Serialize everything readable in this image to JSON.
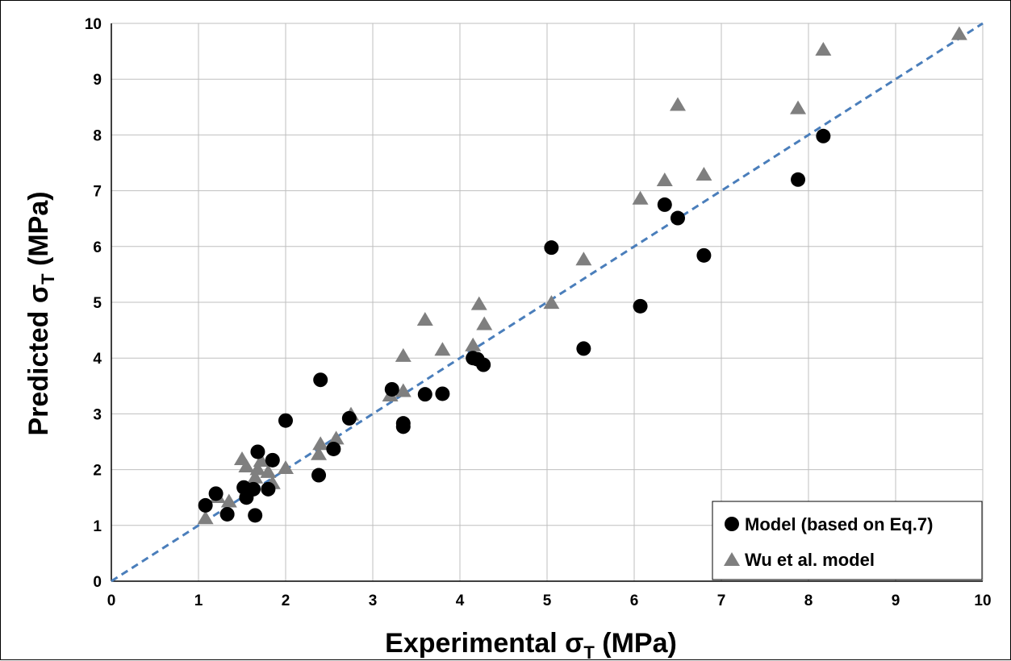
{
  "chart_data": {
    "type": "scatter",
    "xlabel_main": "Experimental σ",
    "xlabel_sub": "T",
    "xlabel_unit": " (MPa)",
    "ylabel_main": "Predicted σ",
    "ylabel_sub": "T",
    "ylabel_unit": " (MPa)",
    "xlim": [
      0,
      10
    ],
    "ylim": [
      0,
      10
    ],
    "xticks": [
      0,
      1,
      2,
      3,
      4,
      5,
      6,
      7,
      8,
      9,
      10
    ],
    "yticks": [
      0,
      1,
      2,
      3,
      4,
      5,
      6,
      7,
      8,
      9,
      10
    ],
    "grid": true,
    "legend_position": "bottom-right",
    "reference_line": {
      "style": "dashed",
      "color": "#4a7ebb",
      "from": [
        0,
        0
      ],
      "to": [
        10,
        10
      ]
    },
    "series": [
      {
        "name": "Model (based on Eq.7)",
        "marker": "circle",
        "color": "#000000",
        "x": [
          1.08,
          1.2,
          1.33,
          1.52,
          1.55,
          1.63,
          1.65,
          1.68,
          1.8,
          1.85,
          2.0,
          2.38,
          2.4,
          2.55,
          2.73,
          3.22,
          3.35,
          3.35,
          3.6,
          3.8,
          4.15,
          4.2,
          4.27,
          5.05,
          5.42,
          6.07,
          6.35,
          6.5,
          6.8,
          7.88,
          8.17
        ],
        "y": [
          1.36,
          1.57,
          1.2,
          1.68,
          1.5,
          1.65,
          1.18,
          2.32,
          1.65,
          2.17,
          2.88,
          1.9,
          3.61,
          2.37,
          2.92,
          3.44,
          2.83,
          2.77,
          3.35,
          3.36,
          4.0,
          3.98,
          3.88,
          5.98,
          4.17,
          4.93,
          6.75,
          6.51,
          5.84,
          7.2,
          7.98
        ]
      },
      {
        "name": "Wu et al. model",
        "marker": "triangle",
        "color": "#7f7f7f",
        "x": [
          1.08,
          1.22,
          1.35,
          1.5,
          1.55,
          1.65,
          1.68,
          1.72,
          1.8,
          1.85,
          2.0,
          2.38,
          2.4,
          2.58,
          2.75,
          3.2,
          3.35,
          3.35,
          3.6,
          3.8,
          4.15,
          4.22,
          4.28,
          5.05,
          5.42,
          6.07,
          6.35,
          6.5,
          6.8,
          7.88,
          8.17,
          9.73
        ],
        "y": [
          1.12,
          1.5,
          1.42,
          2.18,
          2.05,
          1.85,
          2.0,
          2.15,
          1.95,
          1.75,
          2.02,
          2.27,
          2.45,
          2.55,
          2.98,
          3.32,
          3.4,
          4.03,
          4.68,
          4.14,
          4.22,
          4.96,
          4.6,
          4.98,
          5.76,
          6.85,
          7.18,
          8.53,
          7.28,
          8.47,
          9.52,
          9.8
        ]
      }
    ]
  }
}
